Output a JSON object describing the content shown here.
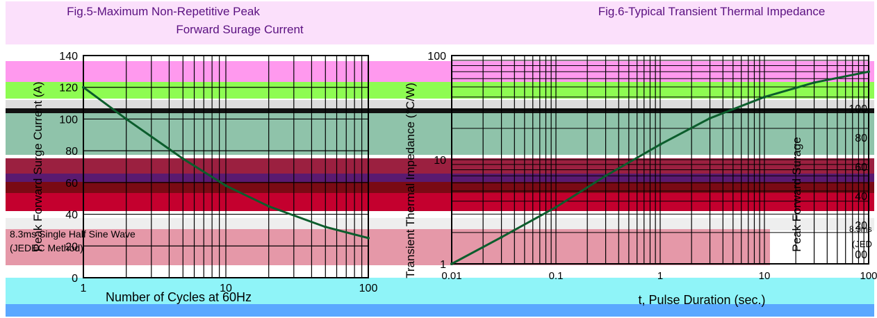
{
  "chart_data": [
    {
      "type": "line",
      "title_line1": "Fig.5-Maximum Non-Repetitive Peak",
      "title_line2": "Forward Surage Current",
      "xlabel": "Number of Cycles at 60Hz",
      "ylabel": "Peak Forward Surge Current (A)",
      "x_scale": "log",
      "xlim": [
        1,
        100
      ],
      "ylim": [
        0,
        140
      ],
      "x_ticks": [
        "1",
        "10",
        "100"
      ],
      "y_ticks": [
        "140",
        "120",
        "100",
        "80",
        "60",
        "40",
        "20",
        "0"
      ],
      "annotation": [
        "8.3ms Single Half Sine Wave",
        "(JEDEC Method)"
      ],
      "series": [
        {
          "x": [
            1,
            2,
            5,
            10,
            20,
            50,
            100
          ],
          "y": [
            120,
            100,
            75,
            58,
            45,
            32,
            25
          ]
        }
      ]
    },
    {
      "type": "line",
      "title": "Fig.6-Typical Transient Thermal Impedance",
      "xlabel": "t, Pulse Duration (sec.)",
      "ylabel": "Transient Thermal Impedance (°C/W)",
      "x_scale": "log",
      "y_scale": "log",
      "xlim": [
        0.01,
        100
      ],
      "ylim": [
        1,
        100
      ],
      "x_ticks": [
        "0.01",
        "0.1",
        "1",
        "10",
        "100"
      ],
      "y_ticks": [
        "100",
        "10",
        "1"
      ],
      "series": [
        {
          "x": [
            0.01,
            0.03,
            0.1,
            0.3,
            1,
            3,
            10,
            30,
            100
          ],
          "y": [
            1,
            1.8,
            3.5,
            7,
            14,
            25,
            40,
            55,
            70
          ]
        }
      ]
    },
    {
      "type": "line",
      "ylabel": "Peak Forward Surage",
      "y_ticks": [
        "100",
        "80",
        "60",
        "40",
        "20",
        "00"
      ],
      "annotation": [
        "8.3ms",
        "(JED"
      ]
    }
  ],
  "colors": {
    "curve": "#0b5d2c",
    "band_pink": "#ff99ee",
    "band_green": "#8efc52",
    "band_teal": "#8fc3aa",
    "band_maroon": "#9b2040",
    "band_red": "#c4002e",
    "band_rose": "#e598a8",
    "band_cyan": "#8ff4f8",
    "band_blue": "#5aa8ff"
  }
}
